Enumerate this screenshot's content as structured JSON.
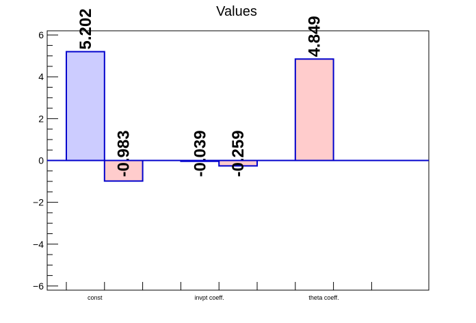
{
  "chart_data": {
    "type": "bar",
    "title": "Values",
    "categories": [
      "const",
      "invpt coeff.",
      "theta coeff."
    ],
    "ylim": [
      -6.2,
      6.2
    ],
    "yticks": [
      -6,
      -4,
      -2,
      0,
      2,
      4,
      6
    ],
    "grid": false,
    "bars": [
      {
        "value": 5.202,
        "label": "5.202",
        "fill": "#ccccff"
      },
      {
        "value": -0.983,
        "label": "-0.983",
        "fill": "#ffcccc"
      },
      {
        "value": 0,
        "label": "",
        "fill": "#ccccff"
      },
      {
        "value": -0.039,
        "label": "-0.039",
        "fill": "#ccccff"
      },
      {
        "value": -0.259,
        "label": "-0.259",
        "fill": "#ffcccc"
      },
      {
        "value": 0,
        "label": "",
        "fill": "#ccccff"
      },
      {
        "value": 4.849,
        "label": "4.849",
        "fill": "#ffcccc"
      },
      {
        "value": 0,
        "label": "",
        "fill": "#ccccff"
      }
    ],
    "colors": {
      "bar_outline": "#0000cc",
      "zero_line": "#0000cc",
      "axis": "#000000"
    }
  }
}
